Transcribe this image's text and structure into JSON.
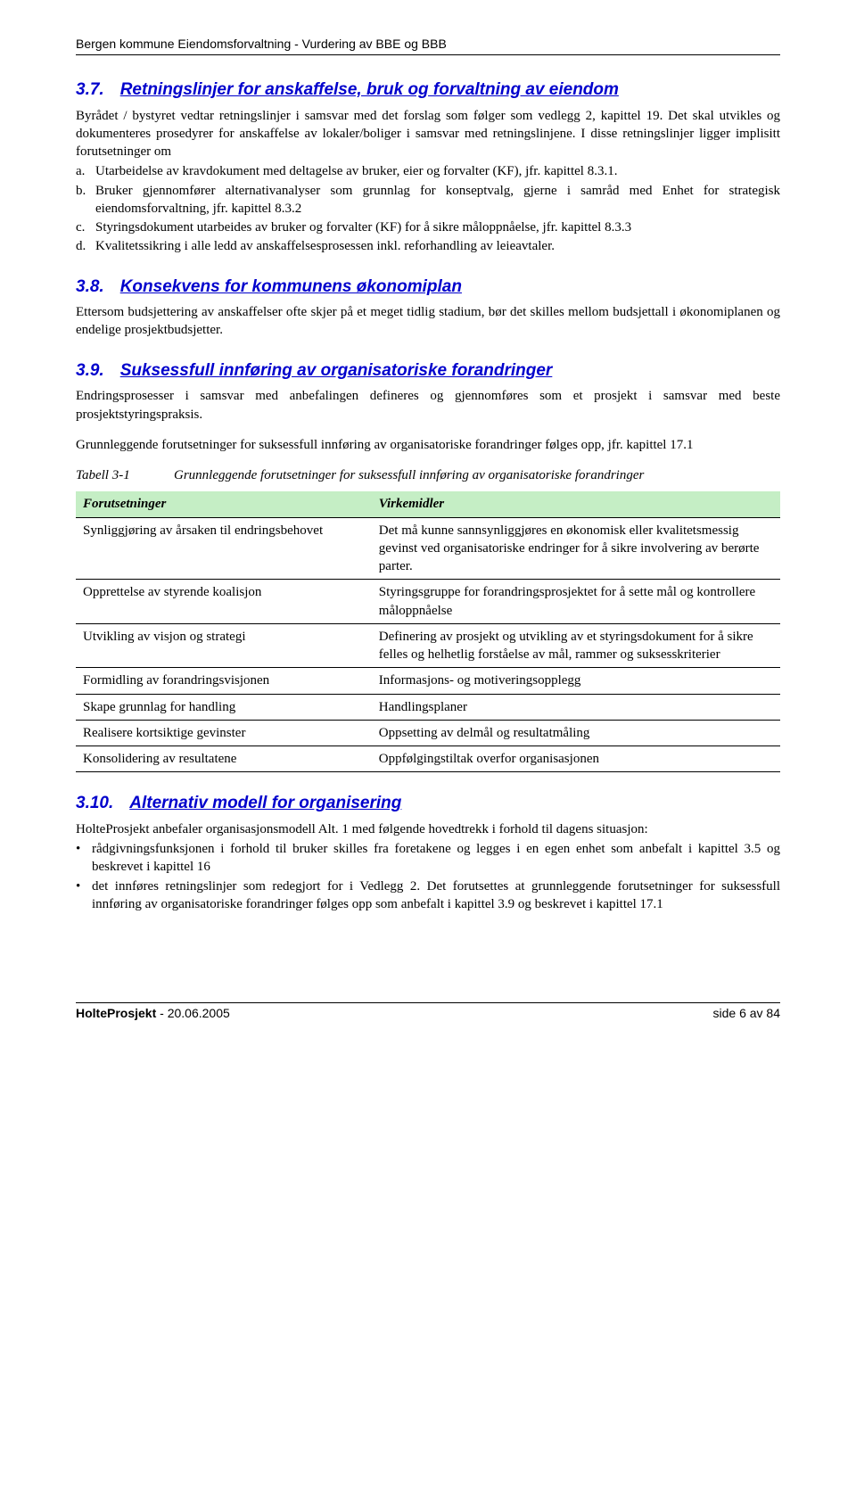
{
  "header": "Bergen kommune Eiendomsforvaltning - Vurdering av BBE og BBB",
  "s37": {
    "num": "3.7.",
    "title": "Retningslinjer for anskaffelse, bruk og forvaltning av eiendom",
    "intro": "Byrådet / bystyret vedtar retningslinjer i samsvar med det forslag som følger som vedlegg 2, kapittel 19. Det skal utvikles og dokumenteres prosedyrer for anskaffelse av lokaler/boliger i samsvar med retningslinjene. I disse retningslinjer ligger implisitt forutsetninger om",
    "items": [
      {
        "k": "a.",
        "t": "Utarbeidelse av kravdokument med deltagelse av bruker, eier og forvalter (KF), jfr. kapittel 8.3.1."
      },
      {
        "k": "b.",
        "t": "Bruker gjennomfører alternativanalyser som grunnlag for konseptvalg, gjerne i samråd med Enhet for strategisk eiendomsforvaltning, jfr. kapittel 8.3.2"
      },
      {
        "k": "c.",
        "t": "Styringsdokument utarbeides av bruker og forvalter (KF) for å sikre måloppnåelse, jfr. kapittel 8.3.3"
      },
      {
        "k": "d.",
        "t": "Kvalitetssikring i alle ledd av anskaffelsesprosessen inkl. reforhandling av leieavtaler."
      }
    ]
  },
  "s38": {
    "num": "3.8.",
    "title": "Konsekvens for kommunens økonomiplan",
    "body": "Ettersom budsjettering av anskaffelser ofte skjer på et meget tidlig stadium, bør det skilles mellom budsjettall i økonomiplanen og endelige prosjektbudsjetter."
  },
  "s39": {
    "num": "3.9.",
    "title": "Suksessfull innføring av organisatoriske forandringer",
    "p1": "Endringsprosesser i samsvar med anbefalingen defineres og gjennomføres som et prosjekt i samsvar med beste prosjektstyringspraksis.",
    "p2": "Grunnleggende forutsetninger for suksessfull innføring av organisatoriske forandringer følges opp, jfr. kapittel 17.1",
    "tableCaptionLabel": "Tabell 3-1",
    "tableCaptionText": "Grunnleggende forutsetninger for suksessfull innføring av organisatoriske forandringer",
    "th1": "Forutsetninger",
    "th2": "Virkemidler",
    "headerBg": "#c5eec5",
    "rows": [
      {
        "c1": "Synliggjøring av årsaken til endringsbehovet",
        "c2": "Det må kunne sannsynliggjøres en økonomisk eller kvalitetsmessig gevinst ved organisatoriske endringer for å sikre involvering av berørte parter."
      },
      {
        "c1": "Opprettelse av styrende koalisjon",
        "c2": "Styringsgruppe for forandringsprosjektet for å sette mål og kontrollere måloppnåelse"
      },
      {
        "c1": "Utvikling av visjon og strategi",
        "c2": "Definering av prosjekt og utvikling av et styringsdokument for å sikre felles og helhetlig forståelse av mål, rammer og suksesskriterier"
      },
      {
        "c1": "Formidling av forandringsvisjonen",
        "c2": "Informasjons- og motiveringsopplegg"
      },
      {
        "c1": "Skape grunnlag for handling",
        "c2": "Handlingsplaner"
      },
      {
        "c1": "Realisere kortsiktige gevinster",
        "c2": "Oppsetting av delmål og resultatmåling"
      },
      {
        "c1": "Konsolidering av resultatene",
        "c2": "Oppfølgingstiltak overfor organisasjonen"
      }
    ]
  },
  "s310": {
    "num": "3.10.",
    "title": "Alternativ modell for organisering",
    "intro": "HolteProsjekt anbefaler organisasjonsmodell Alt. 1 med følgende hovedtrekk i forhold til dagens situasjon:",
    "bullets": [
      "rådgivningsfunksjonen i forhold til bruker skilles fra foretakene og legges i en egen enhet som anbefalt i kapittel 3.5 og beskrevet i kapittel 16",
      "det innføres retningslinjer som redegjort for i Vedlegg 2. Det forutsettes at grunnleggende forutsetninger for suksessfull innføring av organisatoriske forandringer følges opp som anbefalt i kapittel 3.9 og beskrevet i kapittel 17.1"
    ]
  },
  "footer": {
    "leftBold": "HolteProsjekt",
    "leftRest": " - 20.06.2005",
    "right": "side 6 av 84"
  }
}
